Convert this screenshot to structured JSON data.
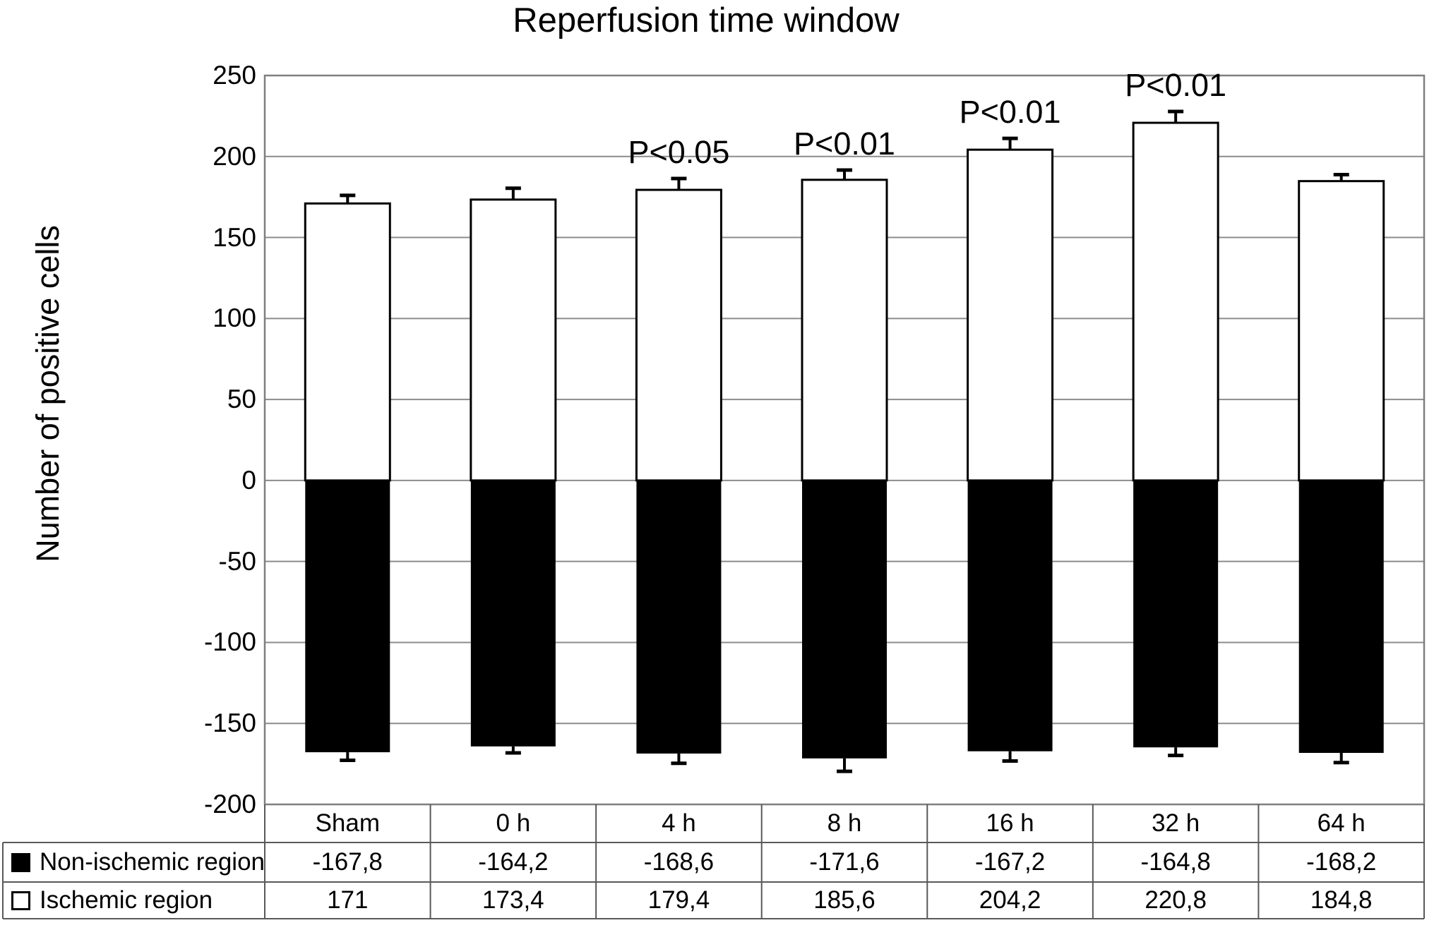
{
  "chart_data": {
    "type": "bar",
    "title": "Reperfusion time window",
    "ylabel": "Number of positive cells",
    "xlabel": "",
    "categories": [
      "Sham",
      "0 h",
      "4 h",
      "8 h",
      "16 h",
      "32 h",
      "64 h"
    ],
    "series": [
      {
        "name": "Non-ischemic region",
        "swatch": "black-filled-square",
        "color": "#000000",
        "values": [
          -167.8,
          -164.2,
          -168.6,
          -171.6,
          -167.2,
          -164.8,
          -168.2
        ],
        "display_values": [
          "-167,8",
          "-164,2",
          "-168,6",
          "-171,6",
          "-167,2",
          "-164,8",
          "-168,2"
        ],
        "errors": [
          5,
          4,
          6,
          8,
          6,
          5,
          6
        ]
      },
      {
        "name": "Ischemic region",
        "swatch": "white-open-square",
        "color": "#ffffff",
        "values": [
          171,
          173.4,
          179.4,
          185.6,
          204.2,
          220.8,
          184.8
        ],
        "display_values": [
          "171",
          "173,4",
          "179,4",
          "185,6",
          "204,2",
          "220,8",
          "184,8"
        ],
        "errors": [
          5,
          7,
          7,
          6,
          7,
          7,
          4
        ]
      }
    ],
    "annotations": [
      {
        "category": "4 h",
        "label": "P<0.05"
      },
      {
        "category": "8 h",
        "label": "P<0.01"
      },
      {
        "category": "16 h",
        "label": "P<0.01"
      },
      {
        "category": "32 h",
        "label": "P<0.01"
      }
    ],
    "y_ticks": [
      250,
      200,
      150,
      100,
      50,
      0,
      -50,
      -100,
      -150,
      -200
    ],
    "ylim": [
      -200,
      250
    ],
    "grid": true,
    "legend_position": "table-left",
    "colors": {
      "gridline": "#8c8c8c",
      "plot_border": "#7f7f7f",
      "table_border": "#595959",
      "bar_outline": "#000000",
      "bar_positive_fill": "#ffffff",
      "bar_negative_fill": "#000000"
    }
  }
}
